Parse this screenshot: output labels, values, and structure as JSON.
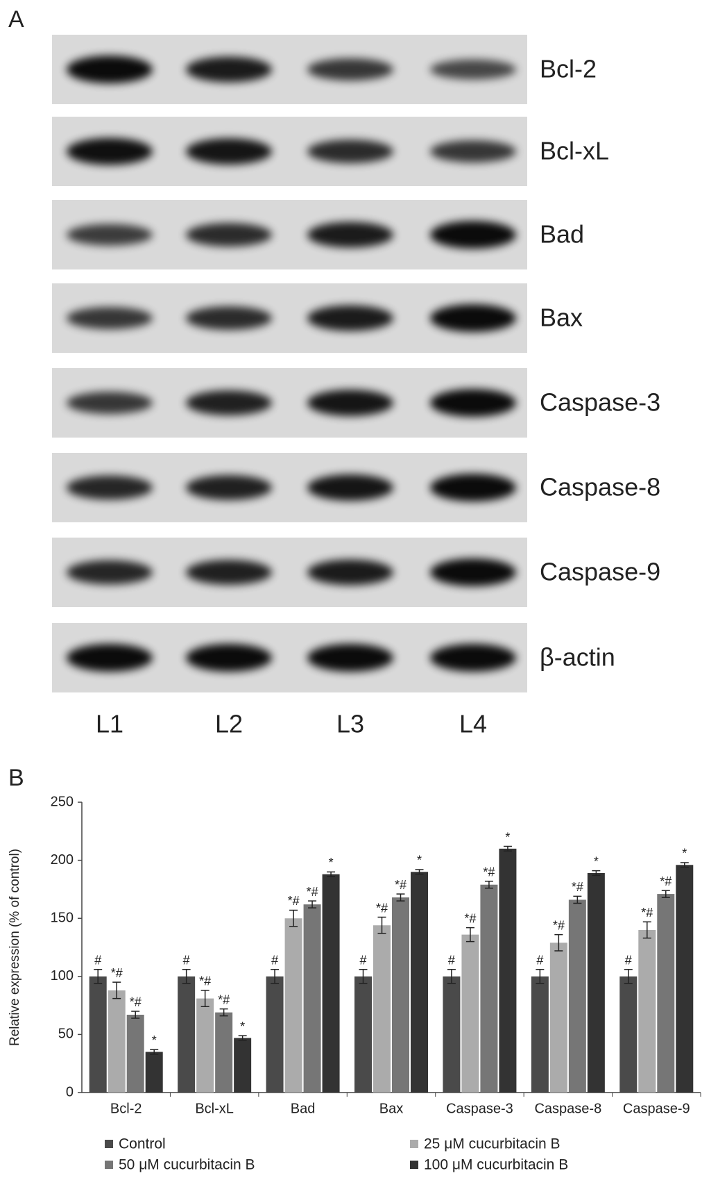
{
  "blot": {
    "panel_label": "A",
    "proteins": [
      "Bcl-2",
      "Bcl-xL",
      "Bad",
      "Bax",
      "Caspase-3",
      "Caspase-8",
      "Caspase-9",
      "β-actin"
    ],
    "lanes": [
      "L1",
      "L2",
      "L3",
      "L4"
    ]
  },
  "chart_data": {
    "type": "bar",
    "panel_label": "B",
    "y_label": "Relative expression (% of control)",
    "categories": [
      "Bcl-2",
      "Bcl-xL",
      "Bad",
      "Bax",
      "Caspase-3",
      "Caspase-8",
      "Caspase-9"
    ],
    "ylim": [
      0,
      250
    ],
    "yticks": [
      0,
      50,
      100,
      150,
      200,
      250
    ],
    "series": [
      {
        "name": "Control",
        "color": "#4a4a4a",
        "values": [
          100,
          100,
          100,
          100,
          100,
          100,
          100
        ],
        "errors": [
          6,
          6,
          6,
          6,
          6,
          6,
          6
        ],
        "annotations": [
          "#",
          "#",
          "#",
          "#",
          "#",
          "#",
          "#"
        ]
      },
      {
        "name": "25 μM cucurbitacin B",
        "color": "#ababab",
        "values": [
          88,
          81,
          150,
          144,
          136,
          129,
          140
        ],
        "errors": [
          7,
          7,
          7,
          7,
          6,
          7,
          7
        ],
        "annotations": [
          "*#",
          "*#",
          "*#",
          "*#",
          "*#",
          "*#",
          "*#"
        ]
      },
      {
        "name": "50 μM cucurbitacin B",
        "color": "#767676",
        "values": [
          67,
          69,
          162,
          168,
          179,
          166,
          171
        ],
        "errors": [
          3,
          3,
          3,
          3,
          3,
          3,
          3
        ],
        "annotations": [
          "*#",
          "*#",
          "*#",
          "*#",
          "*#",
          "*#",
          "*#"
        ]
      },
      {
        "name": "100 μM cucurbitacin B",
        "color": "#333333",
        "values": [
          35,
          47,
          188,
          190,
          210,
          189,
          196
        ],
        "errors": [
          2,
          2,
          2,
          2,
          2,
          2,
          2
        ],
        "annotations": [
          "*",
          "*",
          "*",
          "*",
          "*",
          "*",
          "*"
        ]
      }
    ]
  }
}
